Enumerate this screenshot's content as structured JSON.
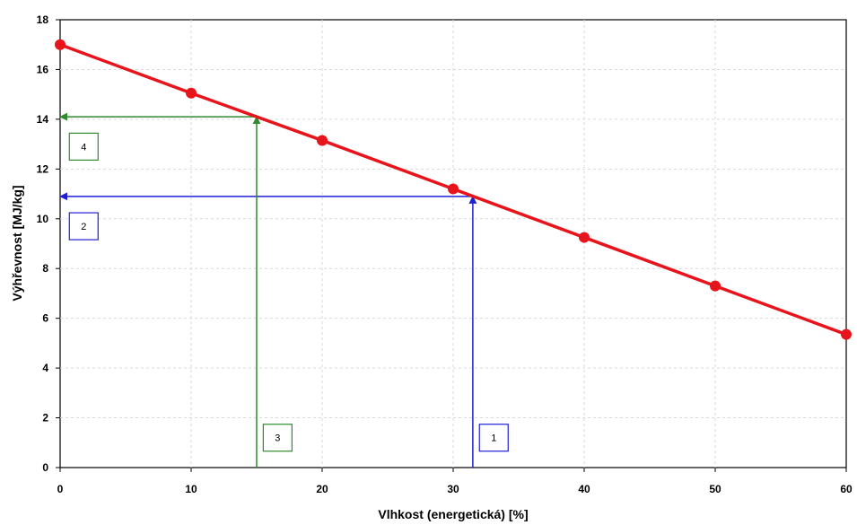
{
  "chart_data": {
    "type": "line",
    "title": "",
    "xlabel": "Vlhkost (energetická) [%]",
    "ylabel": "Výhřevnost [MJ/kg]",
    "xlim": [
      0,
      60
    ],
    "ylim": [
      0,
      18
    ],
    "x_ticks": [
      0,
      10,
      20,
      30,
      40,
      50,
      60
    ],
    "y_ticks": [
      0,
      2,
      4,
      6,
      8,
      10,
      12,
      14,
      16,
      18
    ],
    "grid": true,
    "series": [
      {
        "color": "#e8141b",
        "x": [
          0,
          10,
          20,
          30,
          40,
          50,
          60
        ],
        "y": [
          17.0,
          15.05,
          13.15,
          11.2,
          9.25,
          7.3,
          5.35
        ]
      }
    ],
    "annotations": [
      {
        "label": "1",
        "color": "#1f1fd6",
        "kind": "vertical-arrow",
        "x": 31.5,
        "y_from": 0,
        "y_to": 10.9,
        "box": {
          "x": 33.1,
          "y": 1.2
        }
      },
      {
        "label": "2",
        "color": "#1f1fd6",
        "kind": "horizontal-arrow",
        "y": 10.9,
        "x_from": 31.5,
        "x_to": 0,
        "box": {
          "x": 1.8,
          "y": 9.7
        }
      },
      {
        "label": "3",
        "color": "#2e8b2e",
        "kind": "vertical-arrow",
        "x": 15,
        "y_from": 0,
        "y_to": 14.1,
        "box": {
          "x": 16.6,
          "y": 1.2
        }
      },
      {
        "label": "4",
        "color": "#2e8b2e",
        "kind": "horizontal-arrow",
        "y": 14.1,
        "x_from": 15,
        "x_to": 0,
        "box": {
          "x": 1.8,
          "y": 12.9
        }
      }
    ]
  }
}
